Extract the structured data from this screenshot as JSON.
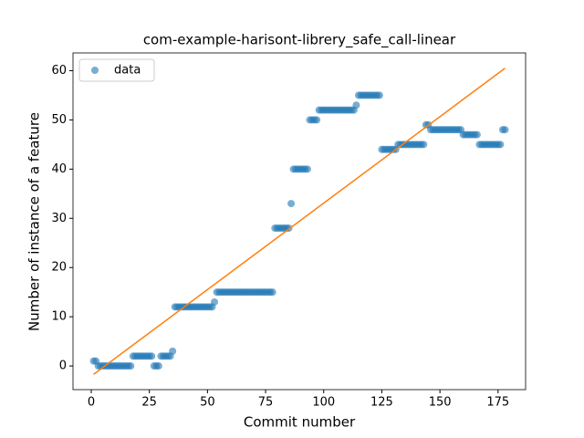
{
  "chart_data": {
    "type": "scatter",
    "title": "com-example-harisont-librery_safe_call-linear",
    "xlabel": "Commit number",
    "ylabel": "Number of instance of a feature",
    "xlim": [
      -7.85,
      186.85
    ],
    "ylim": [
      -4.81,
      63.61
    ],
    "xticks": [
      0,
      25,
      50,
      75,
      100,
      125,
      150,
      175
    ],
    "yticks": [
      0,
      10,
      20,
      30,
      40,
      50,
      60
    ],
    "legend": "upper left",
    "series": [
      {
        "name": "data",
        "color": "#1f77b4",
        "x": [
          1,
          2,
          3,
          4,
          5,
          6,
          7,
          8,
          9,
          10,
          11,
          12,
          13,
          14,
          15,
          16,
          17,
          18,
          19,
          20,
          21,
          22,
          23,
          24,
          25,
          26,
          27,
          28,
          29,
          30,
          31,
          32,
          33,
          34,
          35,
          36,
          37,
          38,
          39,
          40,
          41,
          42,
          43,
          44,
          45,
          46,
          47,
          48,
          49,
          50,
          51,
          52,
          53,
          54,
          55,
          56,
          57,
          58,
          59,
          60,
          61,
          62,
          63,
          64,
          65,
          66,
          67,
          68,
          69,
          70,
          71,
          72,
          73,
          74,
          75,
          76,
          77,
          78,
          79,
          80,
          81,
          82,
          83,
          84,
          85,
          86,
          87,
          88,
          89,
          90,
          91,
          92,
          93,
          94,
          95,
          96,
          97,
          98,
          99,
          100,
          101,
          102,
          103,
          104,
          105,
          106,
          107,
          108,
          109,
          110,
          111,
          112,
          113,
          114,
          115,
          116,
          117,
          118,
          119,
          120,
          121,
          122,
          123,
          124,
          125,
          126,
          127,
          128,
          129,
          130,
          131,
          132,
          133,
          134,
          135,
          136,
          137,
          138,
          139,
          140,
          141,
          142,
          143,
          144,
          145,
          146,
          147,
          148,
          149,
          150,
          151,
          152,
          153,
          154,
          155,
          156,
          157,
          158,
          159,
          160,
          161,
          162,
          163,
          164,
          165,
          166,
          167,
          168,
          169,
          170,
          171,
          172,
          173,
          174,
          175,
          176,
          177,
          178
        ],
        "values": [
          1,
          1,
          0,
          0,
          0,
          0,
          0,
          0,
          0,
          0,
          0,
          0,
          0,
          0,
          0,
          0,
          0,
          2,
          2,
          2,
          2,
          2,
          2,
          2,
          2,
          2,
          0,
          0,
          0,
          2,
          2,
          2,
          2,
          2,
          3,
          12,
          12,
          12,
          12,
          12,
          12,
          12,
          12,
          12,
          12,
          12,
          12,
          12,
          12,
          12,
          12,
          12,
          13,
          15,
          15,
          15,
          15,
          15,
          15,
          15,
          15,
          15,
          15,
          15,
          15,
          15,
          15,
          15,
          15,
          15,
          15,
          15,
          15,
          15,
          15,
          15,
          15,
          15,
          28,
          28,
          28,
          28,
          28,
          28,
          28,
          33,
          40,
          40,
          40,
          40,
          40,
          40,
          40,
          50,
          50,
          50,
          50,
          52,
          52,
          52,
          52,
          52,
          52,
          52,
          52,
          52,
          52,
          52,
          52,
          52,
          52,
          52,
          52,
          53,
          55,
          55,
          55,
          55,
          55,
          55,
          55,
          55,
          55,
          55,
          44,
          44,
          44,
          44,
          44,
          44,
          44,
          45,
          45,
          45,
          45,
          45,
          45,
          45,
          45,
          45,
          45,
          45,
          45,
          49,
          49,
          48,
          48,
          48,
          48,
          48,
          48,
          48,
          48,
          48,
          48,
          48,
          48,
          48,
          48,
          47,
          47,
          47,
          47,
          47,
          47,
          47,
          45,
          45,
          45,
          45,
          45,
          45,
          45,
          45,
          45,
          45,
          48,
          48
        ]
      }
    ],
    "fit": {
      "color": "#ff7f0e",
      "x": [
        1,
        178
      ],
      "values": [
        -1.7,
        60.5
      ]
    }
  }
}
